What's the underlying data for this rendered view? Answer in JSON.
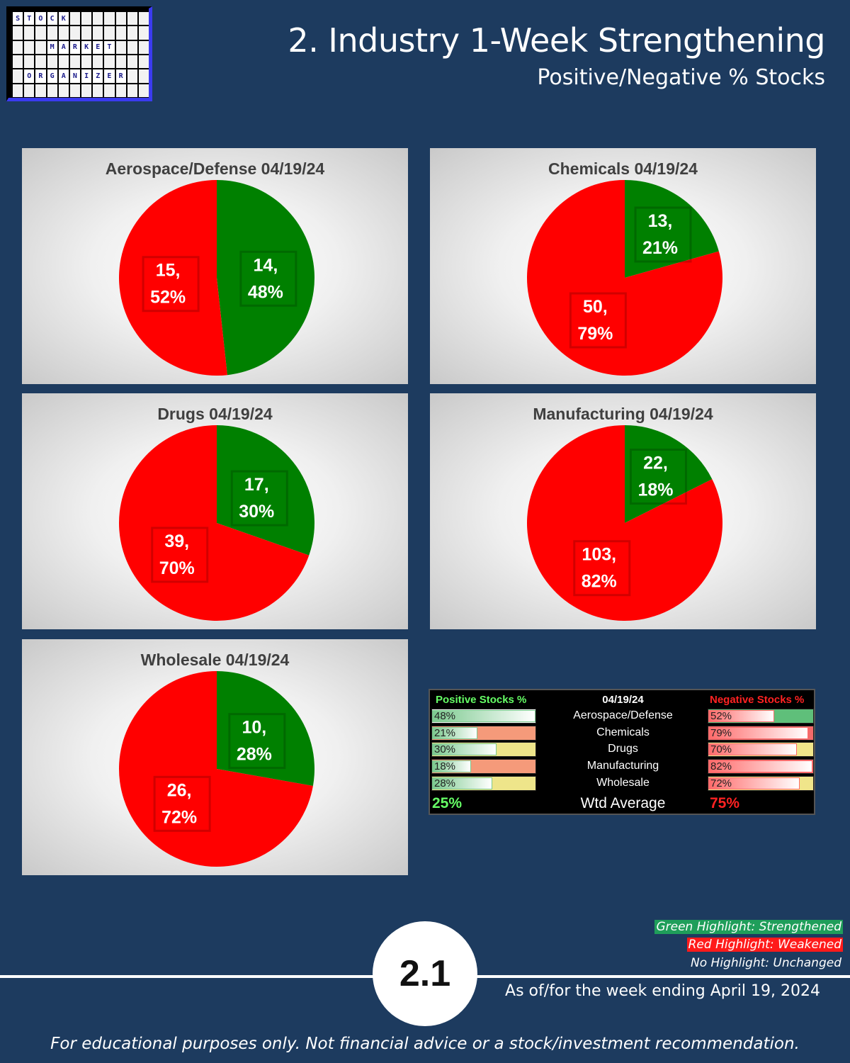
{
  "header": {
    "title": "2. Industry 1-Week Strengthening",
    "subtitle": "Positive/Negative % Stocks"
  },
  "logo": {
    "rows": [
      {
        "text": "STOCK",
        "start": 0
      },
      {
        "text": "MARKET",
        "start": 3
      },
      {
        "text": "ORGANIZER",
        "start": 1
      }
    ]
  },
  "colors": {
    "positive": "#008000",
    "negative": "#ff0000",
    "background": "#1d3b5f"
  },
  "chart_data": [
    {
      "type": "pie",
      "title": "Aerospace/Defense 04/19/24",
      "slices": [
        {
          "label": "14,\n48%",
          "value": 14,
          "percent": 48,
          "color": "#008000"
        },
        {
          "label": "15,\n52%",
          "value": 15,
          "percent": 52,
          "color": "#ff0000"
        }
      ]
    },
    {
      "type": "pie",
      "title": "Chemicals 04/19/24",
      "slices": [
        {
          "label": "13,\n21%",
          "value": 13,
          "percent": 21,
          "color": "#008000"
        },
        {
          "label": "50,\n79%",
          "value": 50,
          "percent": 79,
          "color": "#ff0000"
        }
      ]
    },
    {
      "type": "pie",
      "title": "Drugs 04/19/24",
      "slices": [
        {
          "label": "17,\n30%",
          "value": 17,
          "percent": 30,
          "color": "#008000"
        },
        {
          "label": "39,\n70%",
          "value": 39,
          "percent": 70,
          "color": "#ff0000"
        }
      ]
    },
    {
      "type": "pie",
      "title": "Manufacturing 04/19/24",
      "slices": [
        {
          "label": "22,\n18%",
          "value": 22,
          "percent": 18,
          "color": "#008000"
        },
        {
          "label": "103,\n82%",
          "value": 103,
          "percent": 82,
          "color": "#ff0000"
        }
      ]
    },
    {
      "type": "pie",
      "title": "Wholesale 04/19/24",
      "slices": [
        {
          "label": "10,\n28%",
          "value": 10,
          "percent": 28,
          "color": "#008000"
        },
        {
          "label": "26,\n72%",
          "value": 26,
          "percent": 72,
          "color": "#ff0000"
        }
      ]
    },
    {
      "type": "table",
      "date": "04/19/24",
      "positive_header": "Positive Stocks %",
      "negative_header": "Negative Stocks %",
      "rows": [
        {
          "industry": "Aerospace/Defense",
          "positive": 48,
          "positive_label": "48%",
          "negative": 52,
          "negative_label": "52%",
          "highlight": "green"
        },
        {
          "industry": "Chemicals",
          "positive": 21,
          "positive_label": "21%",
          "negative": 79,
          "negative_label": "79%",
          "highlight": "red"
        },
        {
          "industry": "Drugs",
          "positive": 30,
          "positive_label": "30%",
          "negative": 70,
          "negative_label": "70%",
          "highlight": "yellow"
        },
        {
          "industry": "Manufacturing",
          "positive": 18,
          "positive_label": "18%",
          "negative": 82,
          "negative_label": "82%",
          "highlight": "red"
        },
        {
          "industry": "Wholesale",
          "positive": 28,
          "positive_label": "28%",
          "negative": 72,
          "negative_label": "72%",
          "highlight": "yellow"
        }
      ],
      "wtd_label": "Wtd Average",
      "wtd_positive": "25%",
      "wtd_negative": "75%"
    }
  ],
  "legend": {
    "green": "Green Highlight: Strengthened",
    "red": "Red Highlight: Weakened",
    "none": "No Highlight: Unchanged"
  },
  "footer": {
    "badge": "2.1",
    "as_of": "As of/for the week ending April 19, 2024",
    "disclaimer": "For educational purposes only. Not financial advice or a stock/investment recommendation."
  }
}
